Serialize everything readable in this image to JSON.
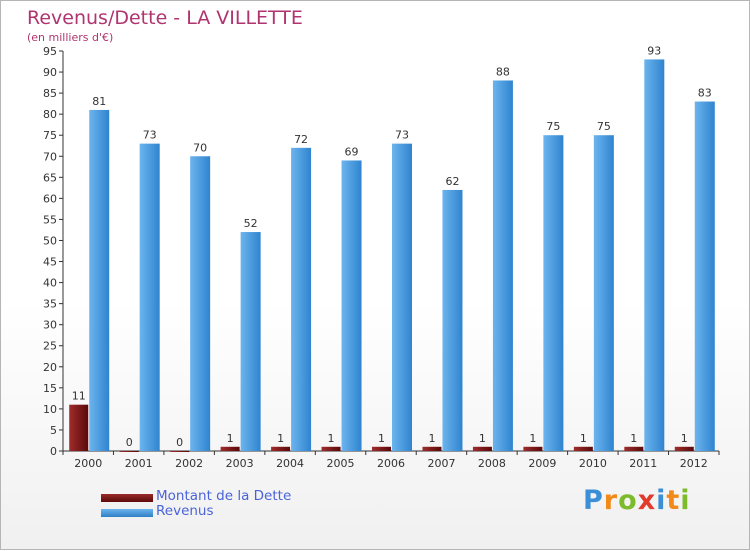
{
  "colors": {
    "title": "#b0346f",
    "dette": "#6e0d0d",
    "revenus": "#3f95dd",
    "axis": "#333333",
    "legend_text": "#4a63d8"
  },
  "chart_data": {
    "type": "bar",
    "title": "Revenus/Dette - LA VILLETTE",
    "subtitle": "(en milliers d'€)",
    "xlabel": "",
    "ylabel": "",
    "ylim": [
      0,
      95
    ],
    "yticks": [
      0,
      5,
      10,
      15,
      20,
      25,
      30,
      35,
      40,
      45,
      50,
      55,
      60,
      65,
      70,
      75,
      80,
      85,
      90,
      95
    ],
    "grid": false,
    "categories": [
      "2000",
      "2001",
      "2002",
      "2003",
      "2004",
      "2005",
      "2006",
      "2007",
      "2008",
      "2009",
      "2010",
      "2011",
      "2012"
    ],
    "series": [
      {
        "name": "Montant de la Dette",
        "color": "#6e0d0d",
        "values": [
          11,
          0,
          0,
          1,
          1,
          1,
          1,
          1,
          1,
          1,
          1,
          1,
          1
        ]
      },
      {
        "name": "Revenus",
        "color": "#3f95dd",
        "values": [
          81,
          73,
          70,
          52,
          72,
          69,
          73,
          62,
          88,
          75,
          75,
          93,
          83
        ]
      }
    ],
    "legend_position": "bottom-left"
  },
  "logo": {
    "letters": [
      {
        "ch": "P",
        "color": "#3a8fd6"
      },
      {
        "ch": "r",
        "color": "#f28a1a"
      },
      {
        "ch": "o",
        "color": "#7dbb2c"
      },
      {
        "ch": "x",
        "color": "#e23b2e"
      },
      {
        "ch": "i",
        "color": "#3a8fd6"
      },
      {
        "ch": "t",
        "color": "#f28a1a"
      },
      {
        "ch": "i",
        "color": "#7dbb2c"
      }
    ]
  }
}
